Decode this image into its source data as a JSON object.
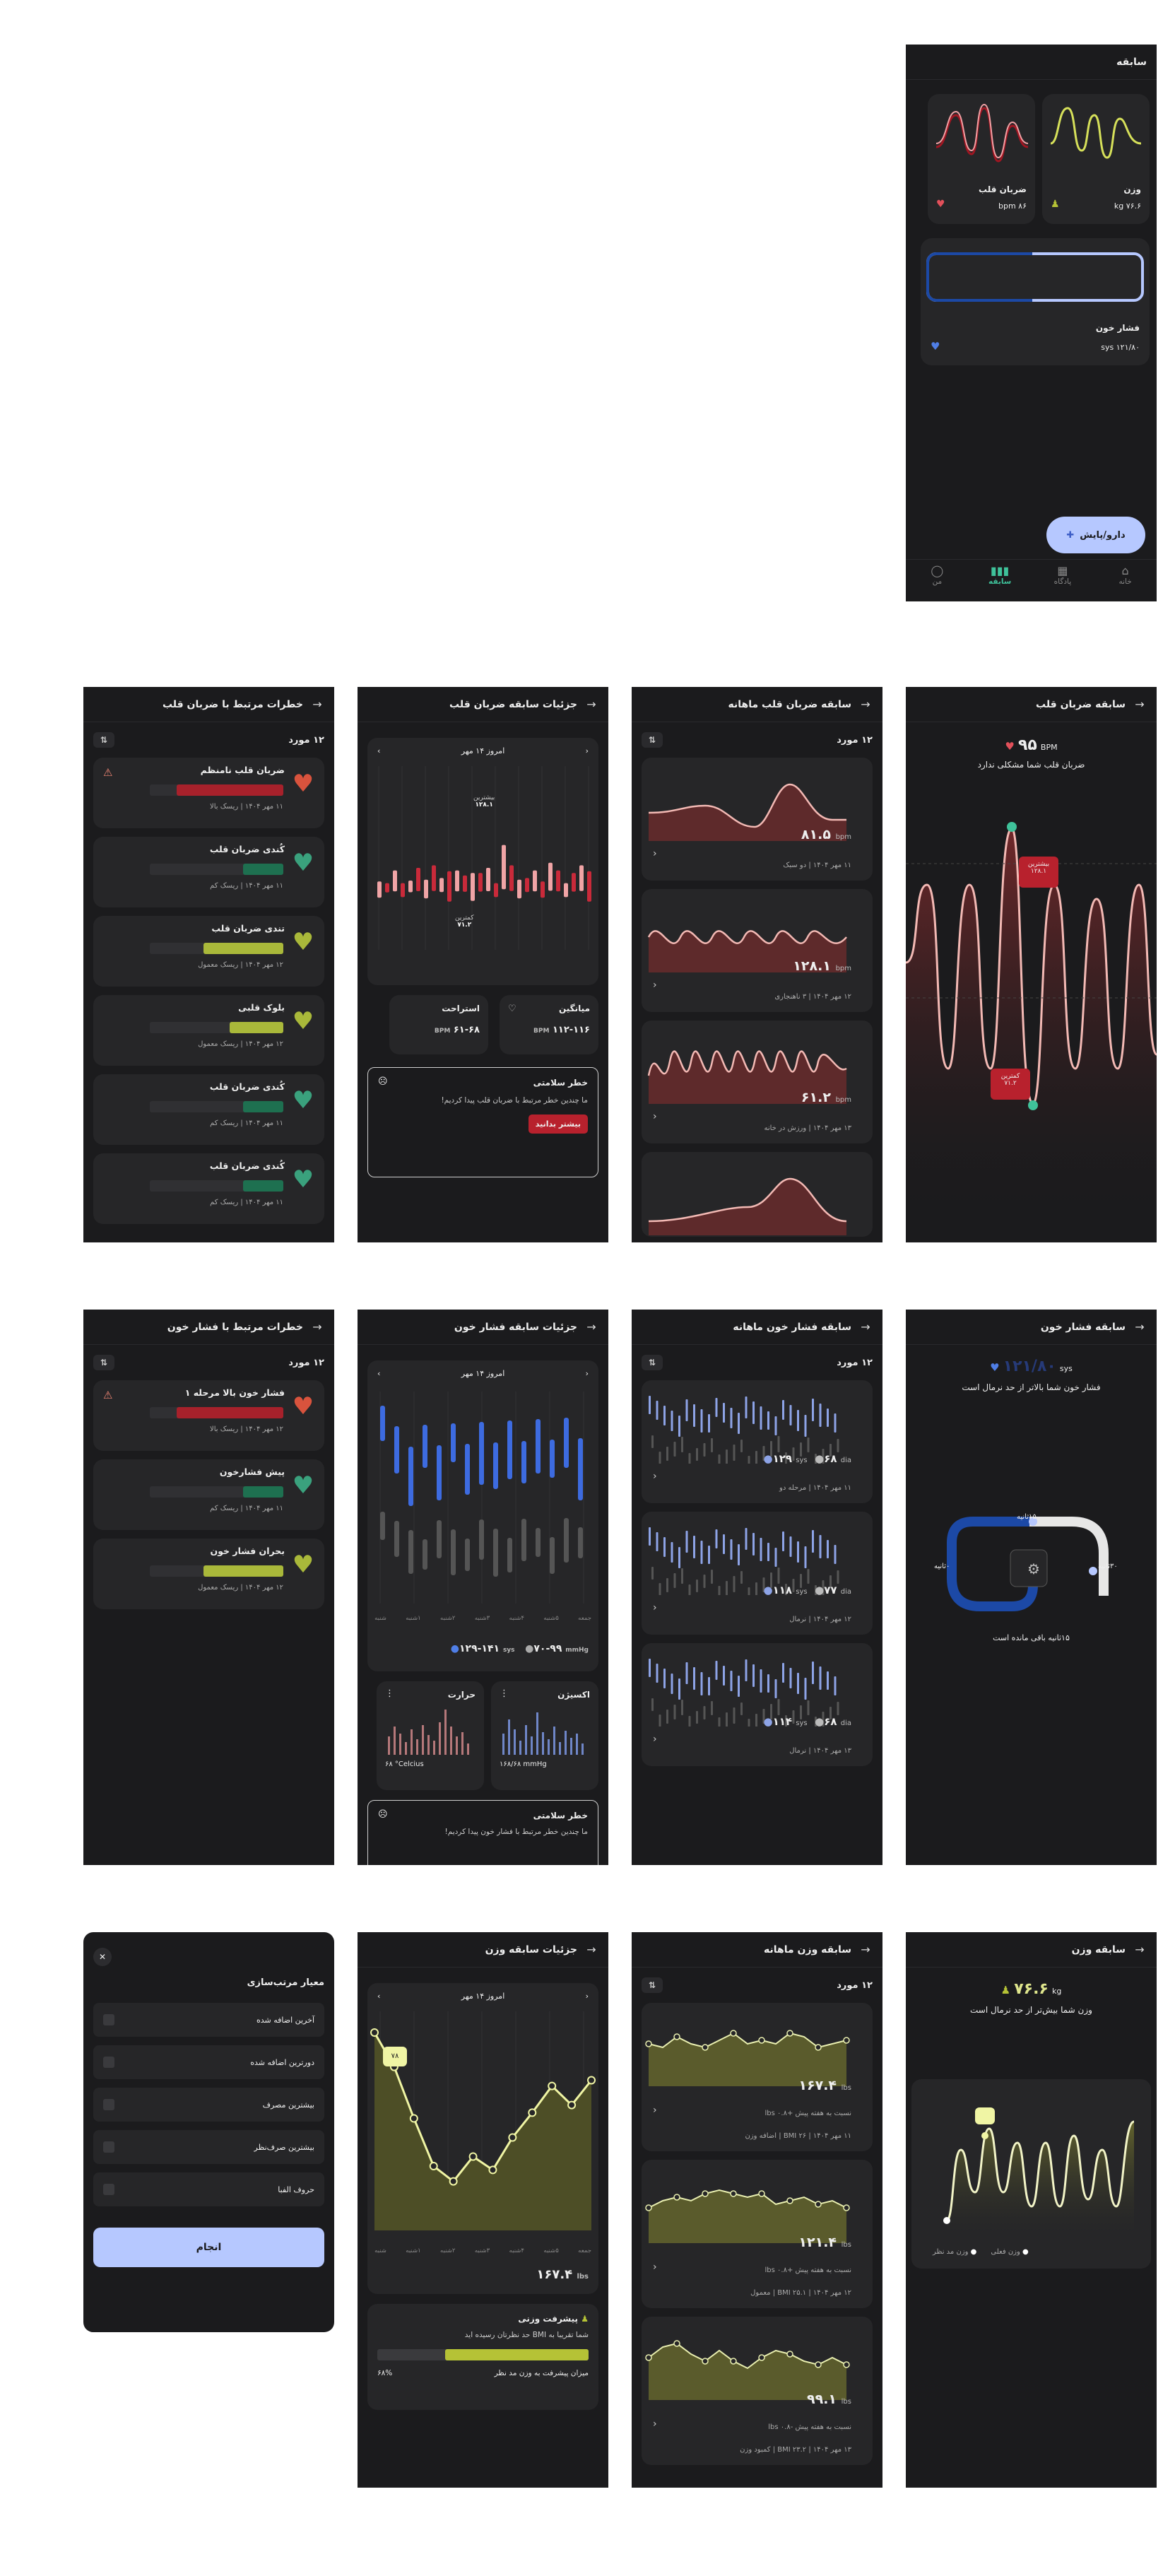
{
  "s1": {
    "title": "سابقه",
    "weight": {
      "title": "وزن",
      "value": "۷۶.۶ kg"
    },
    "heart": {
      "title": "ضربان قلب",
      "value": "۸۶ bpm"
    },
    "bp": {
      "title": "فشار خون",
      "value": "۱۲۱/۸۰ sys"
    },
    "fab": "دارو/پایش",
    "nav": [
      "خانه",
      "پادگاه",
      "سابقه",
      "من"
    ]
  },
  "s2": {
    "title": "سابقه ضربان قلب",
    "value": "۹۵",
    "unit": "BPM",
    "message": "ضربان قلب شما مشکلی ندارد",
    "max_label": "بیشترین",
    "max_val": "۱۲۸.۱",
    "min_label": "کمترین",
    "min_val": "۷۱.۲"
  },
  "s3": {
    "title": "سابقه ضربان قلب ماهانه",
    "count": "۱۲ مورد",
    "items": [
      {
        "value": "۸۱.۵",
        "unit": "bpm",
        "meta": "۱۱ مهر ۱۴۰۴ | دو سبک"
      },
      {
        "value": "۱۲۸.۱",
        "unit": "bpm",
        "meta": "۱۲ مهر ۱۴۰۴ | ۳ ناهنجاری"
      },
      {
        "value": "۶۱.۲",
        "unit": "bpm",
        "meta": "۱۳ مهر ۱۴۰۴ | ورزش در خانه"
      }
    ]
  },
  "s4": {
    "title": "جزئیات سابقه ضربان قلب",
    "date": "امروز ۱۴ مهر",
    "max_label": "بیشترین",
    "max_val": "۱۲۸.۱",
    "min_label": "کمترین",
    "min_val": "۷۱.۲",
    "avg_label": "میانگین",
    "avg_val": "۱۱۲-۱۱۶",
    "avg_unit": "BPM",
    "rest_label": "استراحت",
    "rest_val": "۶۱-۶۸",
    "rest_unit": "BPM",
    "alert_title": "خطر سلامتی",
    "alert_text": "ما چندین خطر مرتبط با ضربان قلب پیدا کردیم!",
    "alert_btn": "بیشتر بدانید",
    "bars": [
      0.35,
      0.2,
      0.45,
      0.3,
      0.25,
      0.5,
      0.4,
      0.55,
      0.3,
      0.65,
      0.45,
      0.35,
      0.6,
      0.4,
      0.5,
      0.3,
      0.95,
      0.55,
      0.4,
      0.3,
      0.45,
      0.35,
      0.6,
      0.45,
      0.3,
      0.4,
      0.55,
      0.65
    ]
  },
  "s5": {
    "title": "خطرات مرتبط با ضربان قلب",
    "count": "۱۲ مورد",
    "items": [
      {
        "name": "ضربان قلب نامنظم",
        "meta": "۱۱ مهر ۱۴۰۴ | ریسک بالا",
        "color": "#d8533d",
        "bar": "#a7212b",
        "fill": 0.8,
        "warn": "⚠"
      },
      {
        "name": "کُندی ضربان قلب",
        "meta": "۱۱ مهر ۱۴۰۴ | ریسک کم",
        "color": "#3aa17d",
        "bar": "#1e7050",
        "fill": 0.3,
        "warn": ""
      },
      {
        "name": "تندی ضربان قلب",
        "meta": "۱۲ مهر ۱۴۰۴ | ریسک معمول",
        "color": "#a9b83a",
        "bar": "#a9b83a",
        "fill": 0.6,
        "warn": ""
      },
      {
        "name": "بلوک قلبی",
        "meta": "۱۲ مهر ۱۴۰۴ | ریسک معمول",
        "color": "#a9b83a",
        "bar": "#a9b83a",
        "fill": 0.4,
        "warn": ""
      },
      {
        "name": "کُندی ضربان قلب",
        "meta": "۱۱ مهر ۱۴۰۴ | ریسک کم",
        "color": "#3aa17d",
        "bar": "#1e7050",
        "fill": 0.3,
        "warn": ""
      },
      {
        "name": "کُندی ضربان قلب",
        "meta": "۱۱ مهر ۱۴۰۴ | ریسک کم",
        "color": "#3aa17d",
        "bar": "#1e7050",
        "fill": 0.3,
        "warn": ""
      }
    ]
  },
  "s6": {
    "title": "سابقه فشار خون",
    "value": "۱۲۱/۸۰",
    "unit": "sys",
    "message": "فشار خون شما بالاتر از حد نرمال است",
    "t15": "۱۵ثانیه",
    "t0": "۰ثانیه",
    "t30": "۳۰ثانیه",
    "remaining": "۱۵ثانیه باقی مانده است"
  },
  "s7": {
    "title": "سابقه فشار خون ماهانه",
    "count": "۱۲ مورد",
    "items": [
      {
        "sys": "۱۲۹",
        "dia": "۶۸",
        "meta": "۱۱ مهر ۱۴۰۴ | مرحله دو"
      },
      {
        "sys": "۱۱۸",
        "dia": "۷۷",
        "meta": "۱۲ مهر ۱۴۰۴ | نرمال"
      },
      {
        "sys": "۱۱۴",
        "dia": "۶۸",
        "meta": "۱۳ مهر ۱۴۰۴ | نرمال"
      }
    ],
    "sys_unit": "sys",
    "dia_unit": "dia"
  },
  "s8": {
    "title": "جزئیات سابقه فشار خون",
    "date": "امروز ۱۴ مهر",
    "days": [
      "جمعه",
      "۵شنبه",
      "۴شنبه",
      "۳شنبه",
      "۲شنبه",
      "۱شنبه",
      "شنبه"
    ],
    "sys_range": "۱۲۹-۱۴۱",
    "sys_unit": "sys",
    "dia_range": "۷۰-۹۹",
    "dia_unit": "mmHg",
    "temp_title": "حرارت",
    "temp_val": "۶۸ °Celcius",
    "oxy_title": "اکسیژن",
    "oxy_val": "۱۶۸/۶۸ mmHg",
    "alert_title": "خطر سلامتی",
    "alert_text": "ما چندین خطر مرتبط با فشار خون پیدا کردیم!"
  },
  "s9": {
    "title": "خطرات مرتبط با فشار خون",
    "count": "۱۲ مورد",
    "items": [
      {
        "name": "فشار خون بالا مرحله ۱",
        "meta": "۱۲ مهر ۱۴۰۴ | ریسک بالا",
        "color": "#d8533d",
        "bar": "#a7212b",
        "fill": 0.8,
        "warn": "⚠"
      },
      {
        "name": "پیش فشارخون",
        "meta": "۱۱ مهر ۱۴۰۴ | ریسک کم",
        "color": "#3aa17d",
        "bar": "#1e7050",
        "fill": 0.3,
        "warn": ""
      },
      {
        "name": "بحران فشار خون",
        "meta": "۱۲ مهر ۱۴۰۴ | ریسک معمول",
        "color": "#a9b83a",
        "bar": "#a9b83a",
        "fill": 0.6,
        "warn": ""
      }
    ]
  },
  "s10": {
    "title": "سابقه وزن",
    "value": "۷۶.۶",
    "unit": "kg",
    "message": "وزن شما بیش‌تر از حد نرمال است",
    "legend_current": "وزن فعلی",
    "legend_target": "وزن مد نظر"
  },
  "s11": {
    "title": "سابقه وزن ماهانه",
    "count": "۱۲ مورد",
    "items": [
      {
        "value": "۱۶۷.۴",
        "unit": "lbs",
        "cmp": "نسبت به هفته پیش +۰.۸ lbs",
        "meta": "۱۱ مهر ۱۴۰۴ | ۲۶ BMI | اضافه وزن"
      },
      {
        "value": "۱۲۱.۴",
        "unit": "lbs",
        "cmp": "نسبت به هفته پیش +۰.۸ lbs",
        "meta": "۱۲ مهر ۱۴۰۴ | ۲۵.۱ BMI | معمول"
      },
      {
        "value": "۹۹.۱",
        "unit": "lbs",
        "cmp": "نسبت به هفته پیش -۰.۸ lbs",
        "meta": "۱۳ مهر ۱۴۰۴ | ۲۳.۲ BMI | کمبود وزن"
      }
    ]
  },
  "s12": {
    "title": "جزئیات سابقه وزن",
    "date": "امروز ۱۴ مهر",
    "days": [
      "جمعه",
      "۵شنبه",
      "۴شنبه",
      "۳شنبه",
      "۲شنبه",
      "۱شنبه",
      "شنبه"
    ],
    "tooltip": "۷۸",
    "value": "۱۶۷.۴",
    "unit": "lbs",
    "progress_title": "پیشرفت وزنی",
    "progress_text": "شما تقریبا به BMI حد نظرتان رسیده اید",
    "progress_label": "میزان پیشرفت به وزن مد نظر",
    "progress_pct": "۶۸%",
    "progress": 0.68,
    "points": [
      1.0,
      0.82,
      0.55,
      0.3,
      0.22,
      0.35,
      0.28,
      0.45,
      0.58,
      0.72,
      0.62,
      0.75
    ]
  },
  "s13": {
    "title": "معیار مرتب‌سازی",
    "options": [
      "آخرین اضافه شده",
      "دورترین اضافه شده",
      "بیشترین مصرف",
      "بیشترین صرف‌نظر",
      "حروف الفبا"
    ],
    "done": "انجام"
  }
}
